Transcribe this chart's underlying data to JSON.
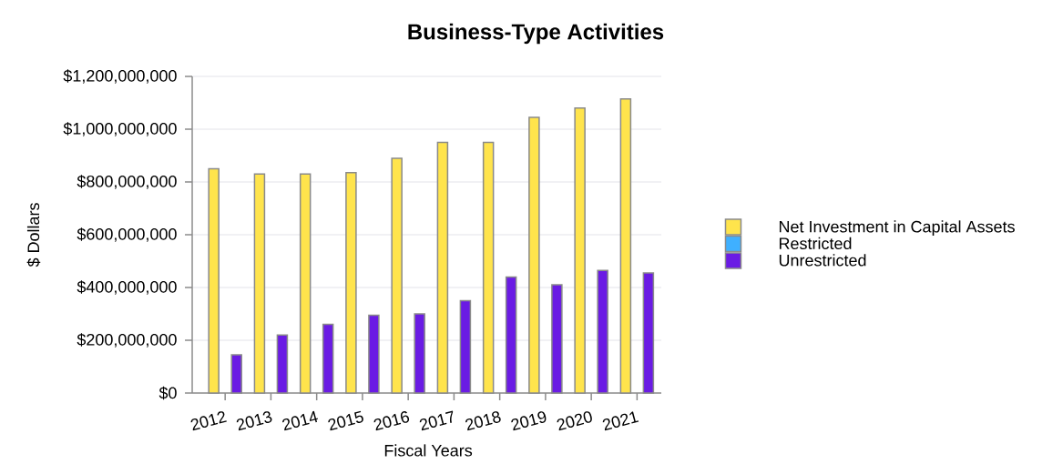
{
  "chart_data": {
    "type": "bar",
    "title": "Business-Type Activities",
    "xlabel": "Fiscal Years",
    "ylabel": "$ Dollars",
    "categories": [
      "2012",
      "2013",
      "2014",
      "2015",
      "2016",
      "2017",
      "2018",
      "2019",
      "2020",
      "2021"
    ],
    "series": [
      {
        "name": "Net Investment in Capital Assets",
        "color": "#ffe44c",
        "values": [
          850000000,
          830000000,
          830000000,
          835000000,
          890000000,
          950000000,
          950000000,
          1045000000,
          1080000000,
          1115000000
        ]
      },
      {
        "name": "Restricted",
        "color": "#3fb0ff",
        "values": [
          null,
          null,
          null,
          null,
          null,
          null,
          null,
          null,
          null,
          null
        ]
      },
      {
        "name": "Unrestricted",
        "color": "#6a1be4",
        "values": [
          145000000,
          220000000,
          260000000,
          295000000,
          300000000,
          350000000,
          440000000,
          410000000,
          465000000,
          455000000
        ]
      }
    ],
    "ylim": [
      0,
      1200000000
    ],
    "yticks": [
      {
        "value": 0,
        "label": "$0"
      },
      {
        "value": 200000000,
        "label": "$200,000,000"
      },
      {
        "value": 400000000,
        "label": "$400,000,000"
      },
      {
        "value": 600000000,
        "label": "$600,000,000"
      },
      {
        "value": 800000000,
        "label": "$800,000,000"
      },
      {
        "value": 1000000000,
        "label": "$1,000,000,000"
      },
      {
        "value": 1200000000,
        "label": "$1,200,000,000"
      }
    ],
    "grid": "y",
    "legend": "right"
  }
}
